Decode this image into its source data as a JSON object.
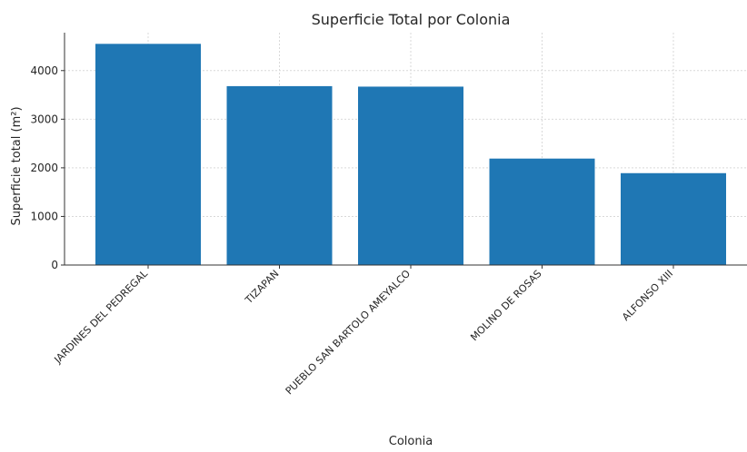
{
  "chart_data": {
    "type": "bar",
    "title": "Superficie Total por Colonia",
    "xlabel": "Colonia",
    "ylabel": "Superficie total (m²)",
    "categories": [
      "JARDINES DEL PEDREGAL",
      "TIZAPAN",
      "PUEBLO SAN BARTOLO AMEYALCO",
      "MOLINO DE ROSAS",
      "ALFONSO XIII"
    ],
    "values": [
      4550,
      3680,
      3670,
      2190,
      1890
    ],
    "yticks": [
      0,
      1000,
      2000,
      3000,
      4000
    ],
    "ylim": [
      0,
      4780
    ],
    "grid": true,
    "bar_color": "#1f77b4"
  }
}
